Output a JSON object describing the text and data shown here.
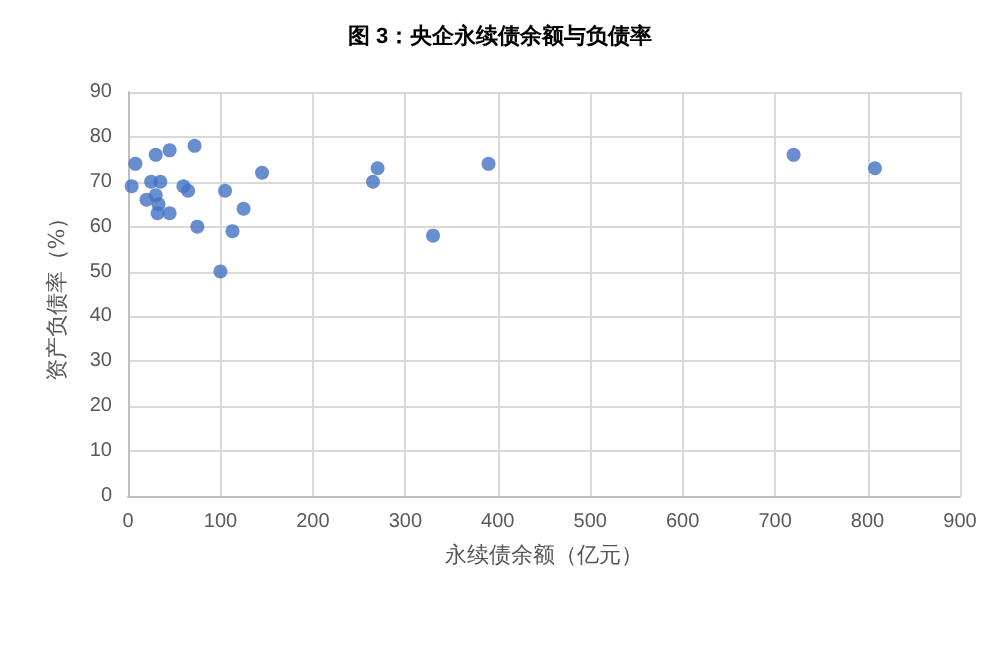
{
  "chart_data": {
    "type": "scatter",
    "title": "图 3：央企永续债余额与负债率",
    "xlabel": "永续债余额（亿元）",
    "ylabel": "资产负债率（%）",
    "x": [
      4,
      8,
      25,
      30,
      32,
      33,
      35,
      20,
      30,
      45,
      72,
      60,
      65,
      45,
      75,
      100,
      105,
      113,
      125,
      145,
      265,
      270,
      330,
      390,
      720,
      808
    ],
    "values": [
      69,
      74,
      70,
      67,
      63,
      65,
      70,
      66,
      76,
      77,
      78,
      69,
      68,
      63,
      60,
      50,
      68,
      59,
      64,
      72,
      70,
      73,
      58,
      74,
      76,
      73
    ],
    "color": "#4472c4",
    "marker": "circle",
    "grid": true,
    "xlim": [
      0,
      900
    ],
    "xticks": [
      0,
      100,
      200,
      300,
      400,
      500,
      600,
      700,
      800,
      900
    ],
    "ylim": [
      0,
      90
    ],
    "yticks": [
      0,
      10,
      20,
      30,
      40,
      50,
      60,
      70,
      80,
      90
    ]
  }
}
